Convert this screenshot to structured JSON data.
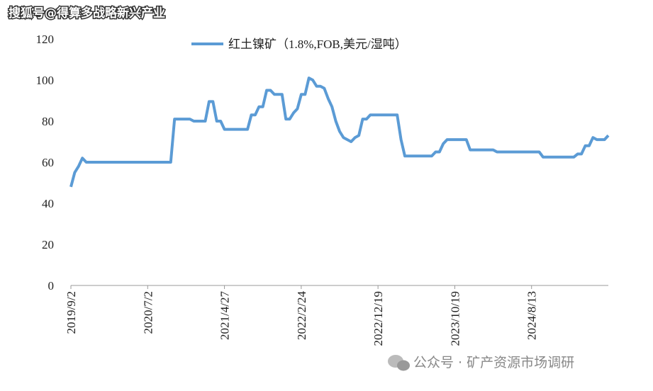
{
  "chart_data": {
    "type": "line",
    "watermark_top": "搜狐号@得算多战略新兴产业",
    "watermark_bottom": "公众号 · 矿产资源市场调研",
    "categories": [
      "2019/9/2",
      null,
      null,
      null,
      null,
      null,
      null,
      null,
      null,
      null,
      null,
      null,
      null,
      null,
      null,
      null,
      null,
      null,
      null,
      null,
      "2020/7/2",
      null,
      null,
      null,
      null,
      null,
      null,
      null,
      null,
      null,
      null,
      null,
      null,
      null,
      null,
      null,
      null,
      null,
      null,
      null,
      "2021/4/27",
      null,
      null,
      null,
      null,
      null,
      null,
      null,
      null,
      null,
      null,
      null,
      null,
      null,
      null,
      null,
      null,
      null,
      null,
      null,
      "2022/2/24",
      null,
      null,
      null,
      null,
      null,
      null,
      null,
      null,
      null,
      null,
      null,
      null,
      null,
      null,
      null,
      null,
      null,
      null,
      null,
      "2022/12/19",
      null,
      null,
      null,
      null,
      null,
      null,
      null,
      null,
      null,
      null,
      null,
      null,
      null,
      null,
      null,
      null,
      null,
      null,
      null,
      "2023/10/19",
      null,
      null,
      null,
      null,
      null,
      null,
      null,
      null,
      null,
      null,
      null,
      null,
      null,
      null,
      null,
      null,
      null,
      null,
      null,
      "2024/8/13",
      null,
      null,
      null,
      null,
      null,
      null,
      null,
      null,
      null,
      null,
      null,
      null,
      null,
      null,
      null,
      null,
      null,
      null,
      null,
      null
    ],
    "series": [
      {
        "name": "红土镍矿（1.8%,FOB,美元/湿吨）",
        "color": "#5b9bd5",
        "values": [
          48,
          55,
          58,
          62,
          60,
          60,
          60,
          60,
          60,
          60,
          60,
          60,
          60,
          60,
          60,
          60,
          60,
          60,
          60,
          60,
          60,
          60,
          60,
          60,
          60,
          60,
          60,
          81,
          81,
          81,
          81,
          81,
          80,
          80,
          80,
          80,
          89.5,
          89.5,
          80,
          80,
          76,
          76,
          76,
          76,
          76,
          76,
          76,
          83,
          83,
          87,
          87,
          95,
          95,
          93,
          93,
          93,
          81,
          81,
          84,
          86,
          93,
          93,
          101,
          100,
          97,
          97,
          96,
          91,
          87,
          80,
          75,
          72,
          71,
          70,
          72,
          73,
          81,
          81,
          83,
          83,
          83,
          83,
          83,
          83,
          83,
          83,
          71,
          63,
          63,
          63,
          63,
          63,
          63,
          63,
          63,
          65,
          65,
          69,
          71,
          71,
          71,
          71,
          71,
          71,
          66,
          66,
          66,
          66,
          66,
          66,
          66,
          65,
          65,
          65,
          65,
          65,
          65,
          65,
          65,
          65,
          65,
          65,
          65,
          62.5,
          62.5,
          62.5,
          62.5,
          62.5,
          62.5,
          62.5,
          62.5,
          62.5,
          64,
          64,
          68,
          68,
          72,
          71,
          71,
          71,
          73
        ]
      }
    ],
    "ylim": [
      0,
      120
    ],
    "yticks": [
      0,
      20,
      40,
      60,
      80,
      100,
      120
    ],
    "legend": "top"
  }
}
